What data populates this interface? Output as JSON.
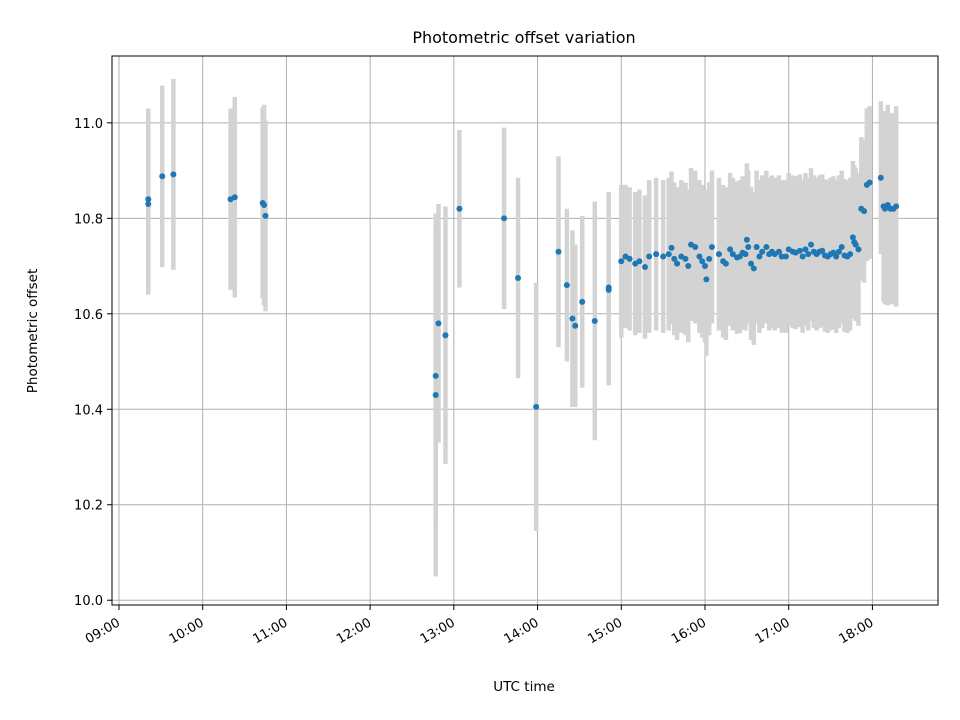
{
  "chart_data": {
    "type": "scatter",
    "title": "Photometric offset variation",
    "xlabel": "UTC time",
    "ylabel": "Photometric offset",
    "x_range": [
      "08:55",
      "18:47"
    ],
    "ylim": [
      9.99,
      11.14
    ],
    "grid": true,
    "x_ticks": [
      "09:00",
      "10:00",
      "11:00",
      "12:00",
      "13:00",
      "14:00",
      "15:00",
      "16:00",
      "17:00",
      "18:00"
    ],
    "y_ticks": [
      "10.0",
      "10.2",
      "10.4",
      "10.6",
      "10.8",
      "11.0"
    ],
    "colors": {
      "point": "#1f77b4",
      "errorbar": "#d3d3d3",
      "grid": "#b0b0b0"
    },
    "x": [
      "09:21",
      "09:21",
      "09:31",
      "09:39",
      "10:20",
      "10:23",
      "10:43",
      "10:44",
      "10:45",
      "12:47",
      "12:47",
      "12:49",
      "12:54",
      "13:04",
      "13:36",
      "13:46",
      "13:59",
      "14:15",
      "14:21",
      "14:25",
      "14:27",
      "14:32",
      "14:41",
      "14:51",
      "14:51",
      "15:00",
      "15:03",
      "15:06",
      "15:10",
      "15:13",
      "15:17",
      "15:20",
      "15:25",
      "15:30",
      "15:34",
      "15:36",
      "15:38",
      "15:40",
      "15:43",
      "15:46",
      "15:48",
      "15:50",
      "15:53",
      "15:56",
      "15:58",
      "16:00",
      "16:01",
      "16:03",
      "16:05",
      "16:10",
      "16:13",
      "16:15",
      "16:18",
      "16:20",
      "16:23",
      "16:25",
      "16:27",
      "16:29",
      "16:30",
      "16:31",
      "16:33",
      "16:35",
      "16:37",
      "16:39",
      "16:41",
      "16:44",
      "16:46",
      "16:48",
      "16:50",
      "16:53",
      "16:55",
      "16:58",
      "17:00",
      "17:03",
      "17:05",
      "17:08",
      "17:10",
      "17:12",
      "17:14",
      "17:16",
      "17:18",
      "17:20",
      "17:22",
      "17:24",
      "17:26",
      "17:28",
      "17:30",
      "17:32",
      "17:34",
      "17:36",
      "17:38",
      "17:40",
      "17:42",
      "17:44",
      "17:46",
      "17:47",
      "17:48",
      "17:50",
      "17:52",
      "17:54",
      "17:56",
      "17:58",
      "18:06",
      "18:08",
      "18:09",
      "18:11",
      "18:13",
      "18:15",
      "18:17"
    ],
    "y": [
      10.84,
      10.83,
      10.888,
      10.892,
      10.84,
      10.844,
      10.832,
      10.828,
      10.805,
      10.47,
      10.43,
      10.58,
      10.555,
      10.82,
      10.8,
      10.675,
      10.405,
      10.73,
      10.66,
      10.59,
      10.575,
      10.625,
      10.585,
      10.655,
      10.65,
      10.71,
      10.72,
      10.715,
      10.705,
      10.71,
      10.698,
      10.72,
      10.725,
      10.72,
      10.725,
      10.738,
      10.715,
      10.705,
      10.72,
      10.715,
      10.7,
      10.745,
      10.74,
      10.72,
      10.71,
      10.7,
      10.672,
      10.715,
      10.74,
      10.725,
      10.71,
      10.705,
      10.735,
      10.725,
      10.718,
      10.72,
      10.728,
      10.725,
      10.755,
      10.74,
      10.705,
      10.695,
      10.74,
      10.72,
      10.73,
      10.74,
      10.725,
      10.73,
      10.725,
      10.73,
      10.72,
      10.72,
      10.735,
      10.73,
      10.728,
      10.732,
      10.72,
      10.735,
      10.725,
      10.745,
      10.73,
      10.725,
      10.73,
      10.732,
      10.722,
      10.72,
      10.725,
      10.728,
      10.72,
      10.73,
      10.74,
      10.722,
      10.72,
      10.725,
      10.76,
      10.75,
      10.745,
      10.735,
      10.82,
      10.815,
      10.87,
      10.875,
      10.885,
      10.825,
      10.82,
      10.828,
      10.82,
      10.82,
      10.825
    ],
    "yerr": [
      0.19,
      0.19,
      0.19,
      0.2,
      0.19,
      0.21,
      0.2,
      0.21,
      0.2,
      0.31,
      0.38,
      0.25,
      0.27,
      0.165,
      0.19,
      0.21,
      0.26,
      0.2,
      0.16,
      0.185,
      0.17,
      0.18,
      0.25,
      0.2,
      0.2,
      0.16,
      0.15,
      0.15,
      0.15,
      0.15,
      0.15,
      0.16,
      0.16,
      0.16,
      0.16,
      0.16,
      0.16,
      0.16,
      0.16,
      0.16,
      0.16,
      0.16,
      0.16,
      0.16,
      0.16,
      0.16,
      0.16,
      0.16,
      0.16,
      0.16,
      0.16,
      0.16,
      0.16,
      0.16,
      0.16,
      0.16,
      0.16,
      0.16,
      0.16,
      0.16,
      0.16,
      0.16,
      0.16,
      0.16,
      0.16,
      0.16,
      0.16,
      0.16,
      0.16,
      0.16,
      0.16,
      0.16,
      0.16,
      0.16,
      0.16,
      0.16,
      0.16,
      0.16,
      0.16,
      0.16,
      0.16,
      0.16,
      0.16,
      0.16,
      0.16,
      0.16,
      0.16,
      0.16,
      0.16,
      0.16,
      0.16,
      0.16,
      0.16,
      0.16,
      0.16,
      0.16,
      0.16,
      0.16,
      0.15,
      0.15,
      0.16,
      0.16,
      0.16,
      0.2,
      0.2,
      0.21,
      0.2,
      0.2,
      0.21
    ]
  }
}
